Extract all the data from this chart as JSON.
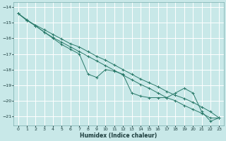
{
  "xlabel": "Humidex (Indice chaleur)",
  "background_color": "#c8e8e8",
  "grid_color": "#b8d8d8",
  "line_color": "#2a7a6a",
  "xlim": [
    -0.5,
    23.5
  ],
  "ylim": [
    -21.6,
    -13.7
  ],
  "yticks": [
    -14,
    -15,
    -16,
    -17,
    -18,
    -19,
    -20,
    -21
  ],
  "xticks": [
    0,
    1,
    2,
    3,
    4,
    5,
    6,
    7,
    8,
    9,
    10,
    11,
    12,
    13,
    14,
    15,
    16,
    17,
    18,
    19,
    20,
    21,
    22,
    23
  ],
  "series1": [
    [
      0,
      -14.4
    ],
    [
      1,
      -14.8
    ],
    [
      2,
      -15.2
    ],
    [
      3,
      -15.6
    ],
    [
      4,
      -16.0
    ],
    [
      5,
      -16.4
    ],
    [
      6,
      -16.7
    ],
    [
      7,
      -17.0
    ],
    [
      8,
      -18.3
    ],
    [
      9,
      -18.5
    ],
    [
      10,
      -18.0
    ],
    [
      11,
      -18.1
    ],
    [
      12,
      -18.3
    ],
    [
      13,
      -19.5
    ],
    [
      14,
      -19.7
    ],
    [
      15,
      -19.8
    ],
    [
      16,
      -19.8
    ],
    [
      17,
      -19.8
    ],
    [
      18,
      -19.5
    ],
    [
      19,
      -19.2
    ],
    [
      20,
      -19.5
    ],
    [
      21,
      -20.7
    ],
    [
      22,
      -21.3
    ],
    [
      23,
      -21.1
    ]
  ],
  "series2": [
    [
      0,
      -14.4
    ],
    [
      1,
      -14.85
    ],
    [
      2,
      -15.15
    ],
    [
      3,
      -15.45
    ],
    [
      4,
      -15.75
    ],
    [
      5,
      -16.05
    ],
    [
      6,
      -16.35
    ],
    [
      7,
      -16.55
    ],
    [
      8,
      -16.85
    ],
    [
      9,
      -17.15
    ],
    [
      10,
      -17.4
    ],
    [
      11,
      -17.7
    ],
    [
      12,
      -18.0
    ],
    [
      13,
      -18.3
    ],
    [
      14,
      -18.6
    ],
    [
      15,
      -18.85
    ],
    [
      16,
      -19.1
    ],
    [
      17,
      -19.4
    ],
    [
      18,
      -19.65
    ],
    [
      19,
      -19.85
    ],
    [
      20,
      -20.1
    ],
    [
      21,
      -20.4
    ],
    [
      22,
      -20.7
    ],
    [
      23,
      -21.1
    ]
  ],
  "series3": [
    [
      0,
      -14.4
    ],
    [
      1,
      -14.85
    ],
    [
      2,
      -15.2
    ],
    [
      3,
      -15.6
    ],
    [
      4,
      -15.95
    ],
    [
      5,
      -16.25
    ],
    [
      6,
      -16.55
    ],
    [
      7,
      -16.85
    ],
    [
      8,
      -17.15
    ],
    [
      9,
      -17.45
    ],
    [
      10,
      -17.75
    ],
    [
      11,
      -18.05
    ],
    [
      12,
      -18.35
    ],
    [
      13,
      -18.65
    ],
    [
      14,
      -18.95
    ],
    [
      15,
      -19.2
    ],
    [
      16,
      -19.5
    ],
    [
      17,
      -19.8
    ],
    [
      18,
      -20.0
    ],
    [
      19,
      -20.3
    ],
    [
      20,
      -20.55
    ],
    [
      21,
      -20.8
    ],
    [
      22,
      -21.1
    ],
    [
      23,
      -21.1
    ]
  ]
}
